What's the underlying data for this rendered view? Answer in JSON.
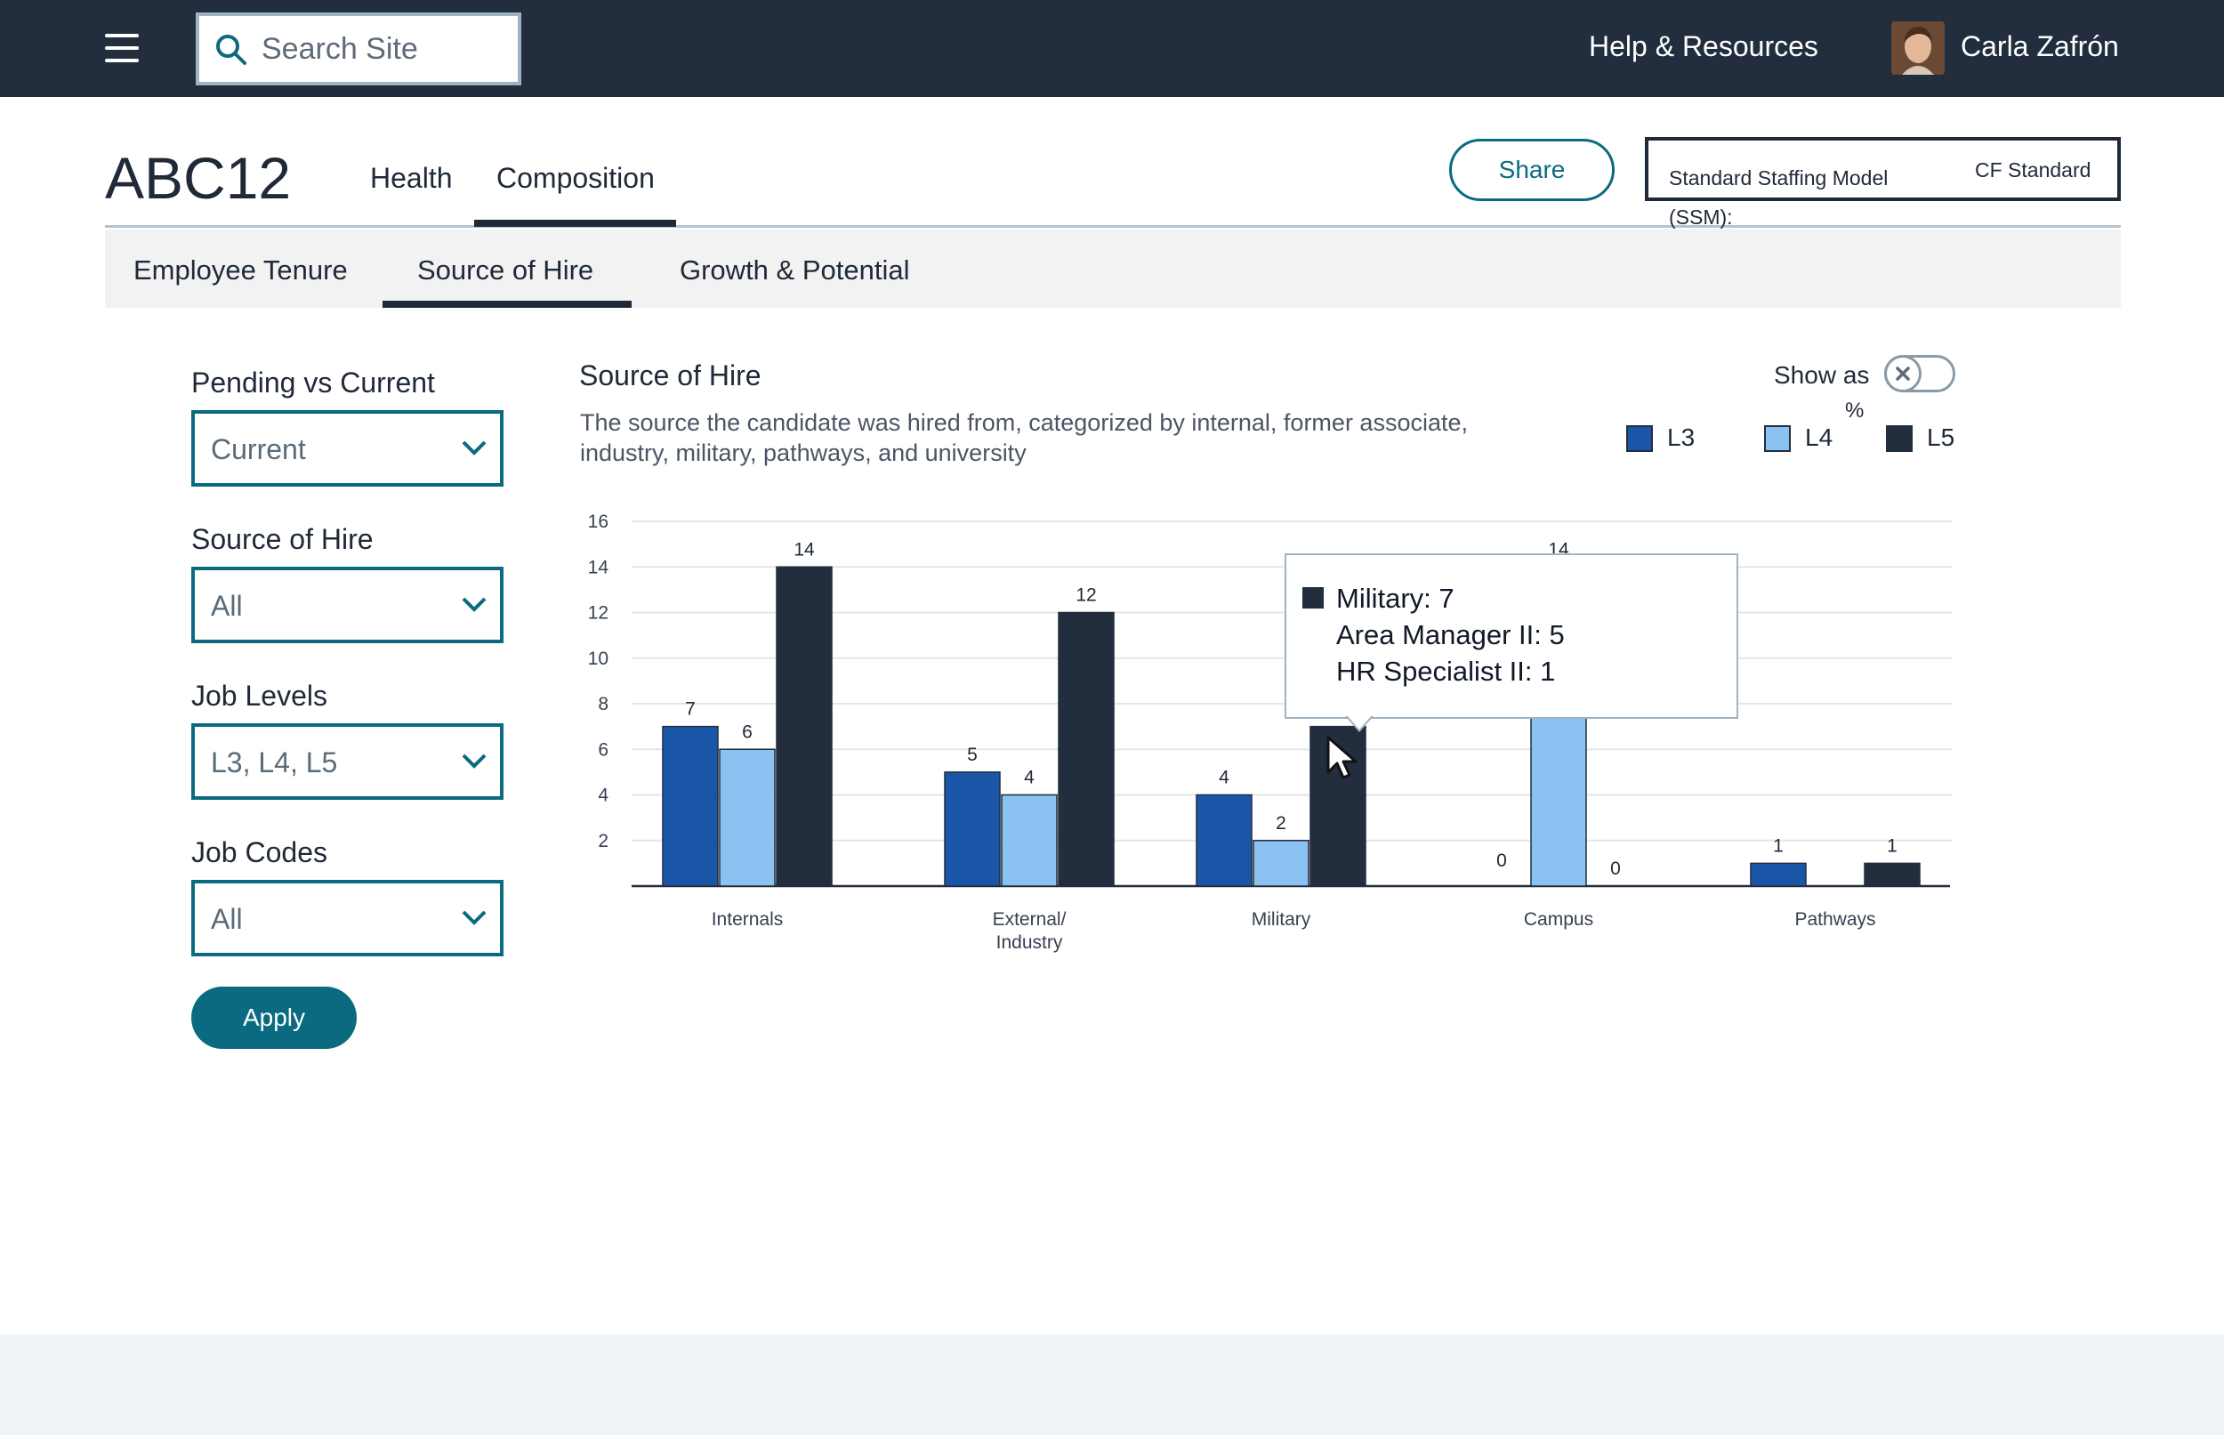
{
  "topbar": {
    "search_placeholder": "Search Site",
    "help_link": "Help & Resources",
    "user_name": "Carla Zafrón"
  },
  "header": {
    "title": "ABC12",
    "tabs": [
      "Health",
      "Composition"
    ],
    "active_tab": "Composition",
    "share_label": "Share",
    "ssm_label": "Standard Staffing Model (SSM):",
    "ssm_value": "CF Standard"
  },
  "subnav": {
    "tabs": [
      "Employee Tenure",
      "Source of Hire",
      "Growth & Potential"
    ],
    "active_tab": "Source of Hire"
  },
  "filters": [
    {
      "label": "Pending vs Current",
      "value": "Current"
    },
    {
      "label": "Source of Hire",
      "value": "All"
    },
    {
      "label": "Job Levels",
      "value": "L3, L4, L5"
    },
    {
      "label": "Job Codes",
      "value": "All"
    }
  ],
  "apply_label": "Apply",
  "chart_panel": {
    "title": "Source of Hire",
    "description": "The source the candidate was hired from, categorized by internal, former associate, industry, military, pathways, and university",
    "show_as_label": "Show as",
    "show_as_unit": "%",
    "toggle_on": false
  },
  "tooltip": {
    "lines": [
      "Military: 7",
      "Area Manager II: 5",
      "HR Specialist II: 1"
    ]
  },
  "colors": {
    "topbar": "#222d3d",
    "accent": "#0a6b80",
    "L3": "#1a56a8",
    "L4": "#8ac3f2",
    "L5": "#222d3d"
  },
  "chart_data": {
    "type": "bar",
    "categories": [
      "Internals",
      "External/\nIndustry",
      "Military",
      "Campus",
      "Pathways"
    ],
    "series": [
      {
        "name": "L3",
        "values": [
          7,
          5,
          4,
          0,
          1
        ]
      },
      {
        "name": "L4",
        "values": [
          6,
          4,
          2,
          14,
          null
        ]
      },
      {
        "name": "L5",
        "values": [
          14,
          12,
          7,
          0,
          1
        ]
      }
    ],
    "value_labels": [
      [
        "7",
        "5",
        "4",
        "",
        "1"
      ],
      [
        "6",
        "4",
        "2",
        "14",
        ""
      ],
      [
        "14",
        "12",
        "",
        "0",
        "1"
      ]
    ],
    "campus_l3_label": "0",
    "y_ticks": [
      2,
      4,
      6,
      8,
      10,
      12,
      14,
      16
    ],
    "ylim": [
      0,
      16
    ],
    "legend_position": "top-right",
    "grid": true
  }
}
